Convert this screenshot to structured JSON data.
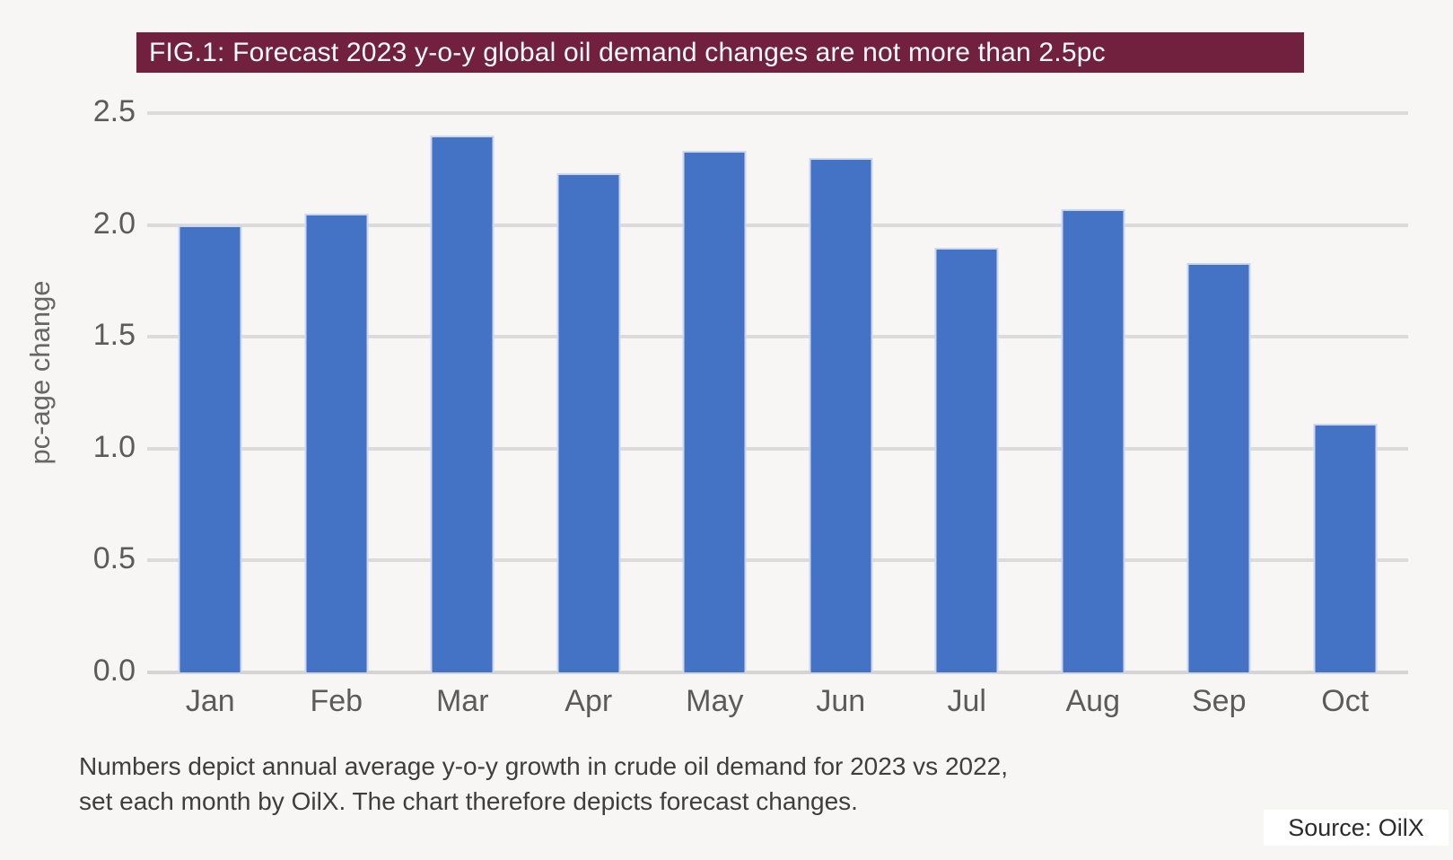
{
  "chart_data": {
    "type": "bar",
    "title": "FIG.1: Forecast 2023 y-o-y global oil demand changes are not more than 2.5pc",
    "categories": [
      "Jan",
      "Feb",
      "Mar",
      "Apr",
      "May",
      "Jun",
      "Jul",
      "Aug",
      "Sep",
      "Oct"
    ],
    "values": [
      2.0,
      2.05,
      2.4,
      2.23,
      2.33,
      2.3,
      1.9,
      2.07,
      1.83,
      1.11
    ],
    "xlabel": "",
    "ylabel": "pc-age change",
    "ylim": [
      0,
      2.5
    ],
    "yticks": [
      0.0,
      0.5,
      1.0,
      1.5,
      2.0,
      2.5
    ],
    "grid": true,
    "legend": "none",
    "bar_color": "#4473C6"
  },
  "footnote": {
    "line1": "Numbers depict annual average y-o-y growth in crude oil demand for 2023 vs 2022,",
    "line2": "set each month by OilX. The chart therefore depicts forecast changes."
  },
  "source": {
    "label": "Source: OilX"
  },
  "colors": {
    "background": "#F7F6F4",
    "banner_bg": "#71203E",
    "banner_text": "#FAFAFA",
    "bar": "#4473C6",
    "gridline": "#DBDBDB",
    "axis_text": "#5B5B5B"
  }
}
